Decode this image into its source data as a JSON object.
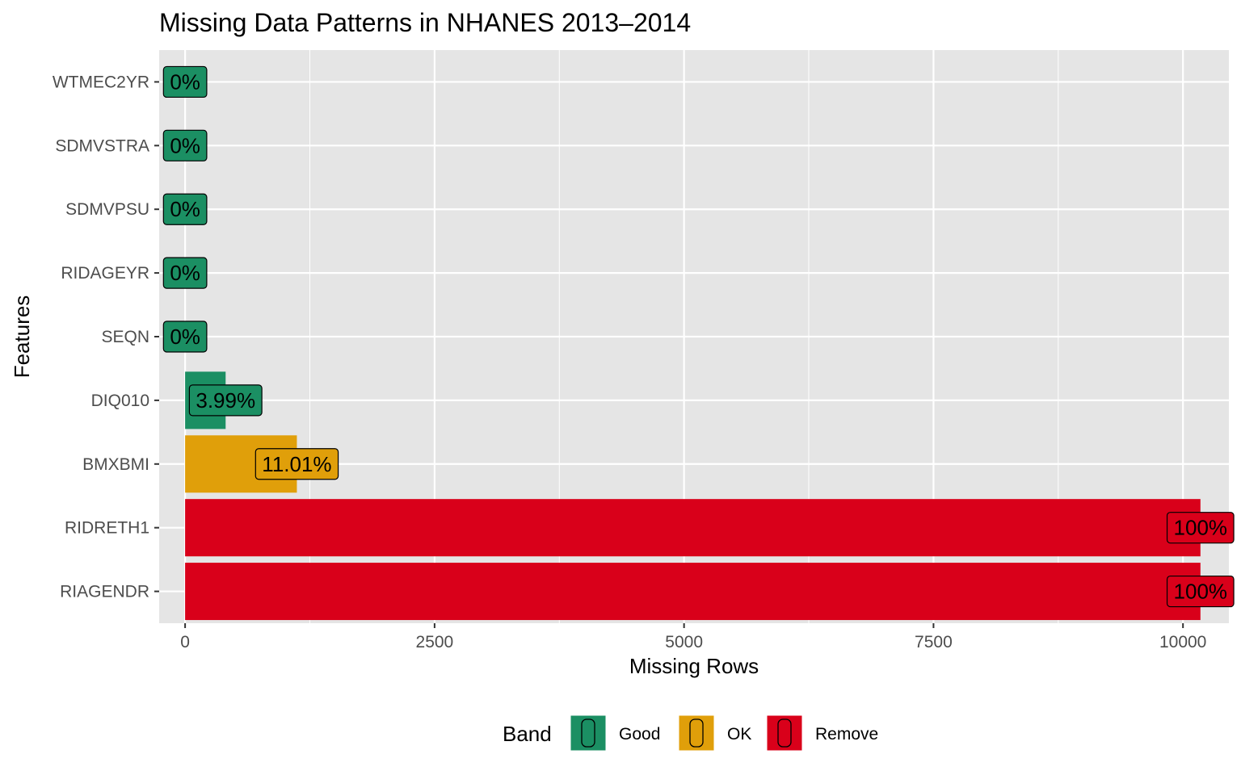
{
  "chart_data": {
    "type": "bar",
    "orientation": "horizontal",
    "title": "Missing Data Patterns in NHANES 2013–2014",
    "xlabel": "Missing Rows",
    "ylabel": "Features",
    "xlim": [
      -260,
      10460
    ],
    "x_ticks": [
      0,
      2500,
      5000,
      7500,
      10000
    ],
    "grid": true,
    "legend_title": "Band",
    "legend_position": "bottom",
    "bands": [
      {
        "name": "Good",
        "color": "#1b8f63"
      },
      {
        "name": "OK",
        "color": "#e09f0a"
      },
      {
        "name": "Remove",
        "color": "#d9001a"
      }
    ],
    "bars": [
      {
        "feature": "WTMEC2YR",
        "value": 0,
        "label": "0%",
        "band": "Good"
      },
      {
        "feature": "SDMVSTRA",
        "value": 0,
        "label": "0%",
        "band": "Good"
      },
      {
        "feature": "SDMVPSU",
        "value": 0,
        "label": "0%",
        "band": "Good"
      },
      {
        "feature": "RIDAGEYR",
        "value": 0,
        "label": "0%",
        "band": "Good"
      },
      {
        "feature": "SEQN",
        "value": 0,
        "label": "0%",
        "band": "Good"
      },
      {
        "feature": "DIQ010",
        "value": 406,
        "label": "3.99%",
        "band": "Good"
      },
      {
        "feature": "BMXBMI",
        "value": 1120,
        "label": "11.01%",
        "band": "OK"
      },
      {
        "feature": "RIDRETH1",
        "value": 10175,
        "label": "100%",
        "band": "Remove"
      },
      {
        "feature": "RIAGENDR",
        "value": 10175,
        "label": "100%",
        "band": "Remove"
      }
    ]
  }
}
